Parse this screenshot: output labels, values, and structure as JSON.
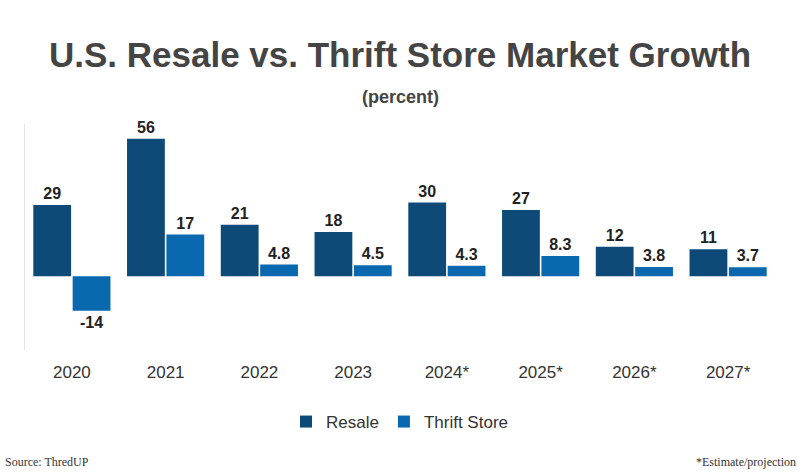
{
  "chart_data": {
    "type": "bar",
    "title": "U.S. Resale vs. Thrift Store Market Growth",
    "subtitle": "(percent)",
    "categories": [
      "2020",
      "2021",
      "2022",
      "2023",
      "2024*",
      "2025*",
      "2026*",
      "2027*"
    ],
    "series": [
      {
        "name": "Resale",
        "color": "#0d4a78",
        "values": [
          29,
          56,
          21,
          18,
          30,
          27,
          12,
          11
        ]
      },
      {
        "name": "Thrift Store",
        "color": "#0a69ae",
        "values": [
          -14,
          17,
          4.8,
          4.5,
          4.3,
          8.3,
          3.8,
          3.7
        ]
      }
    ],
    "ylim": [
      -30,
      62
    ],
    "data_labels": true,
    "tick_labels": "x",
    "grid": false,
    "legend": "bottom",
    "source": "Source: ThredUP",
    "note": "*Estimate/projection"
  }
}
